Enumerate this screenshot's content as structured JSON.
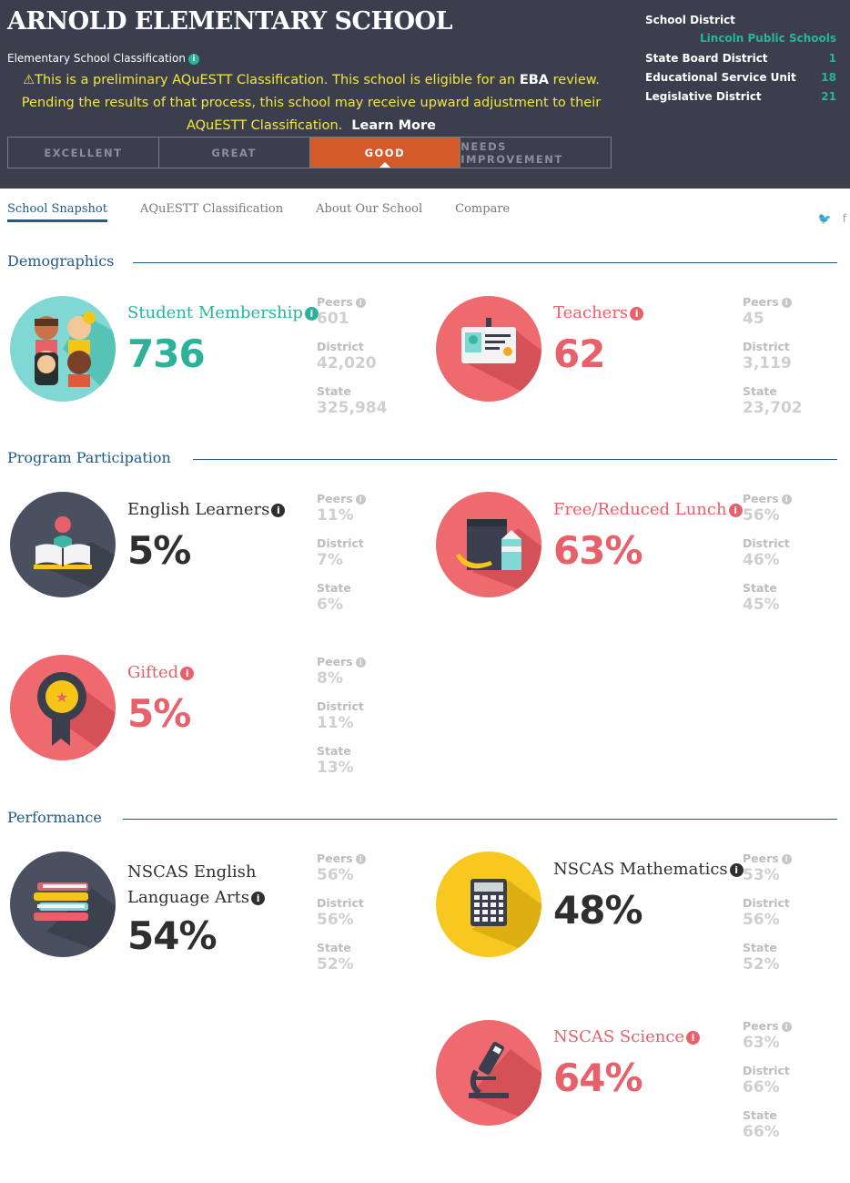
{
  "header": {
    "title": "ARNOLD ELEMENTARY SCHOOL",
    "classification_label": "Elementary School Classification",
    "notice_line1": "This is a preliminary AQuESTT Classification. This school is eligible for an",
    "notice_eba": "EBA",
    "notice_line1_end": "review.",
    "notice_line2": "Pending the results of that process, this school may receive upward adjustment to their AQuESTT Classification.",
    "learn_more": "Learn More",
    "classifications": [
      "EXCELLENT",
      "GREAT",
      "GOOD",
      "NEEDS IMPROVEMENT"
    ],
    "active_classification": "GOOD"
  },
  "district": {
    "school_district_label": "School District",
    "school_district_value": "Lincoln Public Schools",
    "state_board_label": "State Board District",
    "state_board_value": "1",
    "esu_label": "Educational Service Unit",
    "esu_value": "18",
    "legislative_label": "Legislative District",
    "legislative_value": "21"
  },
  "tabs": [
    "School Snapshot",
    "AQuESTT Classification",
    "About Our School",
    "Compare"
  ],
  "social": {
    "twitter": "twitter-icon",
    "facebook": "facebook-icon"
  },
  "sections": {
    "demographics": "Demographics",
    "program": "Program Participation",
    "performance": "Performance"
  },
  "compare_labels": {
    "peers": "Peers",
    "district": "District",
    "state": "State"
  },
  "stats": {
    "membership": {
      "label": "Student Membership",
      "value": "736",
      "peers": "601",
      "district": "42,020",
      "state": "325,984"
    },
    "teachers": {
      "label": "Teachers",
      "value": "62",
      "peers": "45",
      "district": "3,119",
      "state": "23,702"
    },
    "english_learners": {
      "label": "English Learners",
      "value": "5%",
      "peers": "11%",
      "district": "7%",
      "state": "6%"
    },
    "lunch": {
      "label": "Free/Reduced Lunch",
      "value": "63%",
      "peers": "56%",
      "district": "46%",
      "state": "45%"
    },
    "gifted": {
      "label": "Gifted",
      "value": "5%",
      "peers": "8%",
      "district": "11%",
      "state": "13%"
    },
    "ela": {
      "label_line1": "NSCAS English",
      "label_line2": "Language Arts",
      "value": "54%",
      "peers": "56%",
      "district": "56%",
      "state": "52%"
    },
    "math": {
      "label": "NSCAS Mathematics",
      "value": "48%",
      "peers": "53%",
      "district": "56%",
      "state": "52%"
    },
    "science": {
      "label": "NSCAS Science",
      "value": "64%",
      "peers": "63%",
      "district": "66%",
      "state": "66%"
    }
  },
  "colors": {
    "header_bg": "#3b3f4d",
    "teal": "#2bb39a",
    "red": "#e8616a",
    "orange": "#d45a2a",
    "navy": "#1e5b8c",
    "yellow": "#f5e63c"
  }
}
